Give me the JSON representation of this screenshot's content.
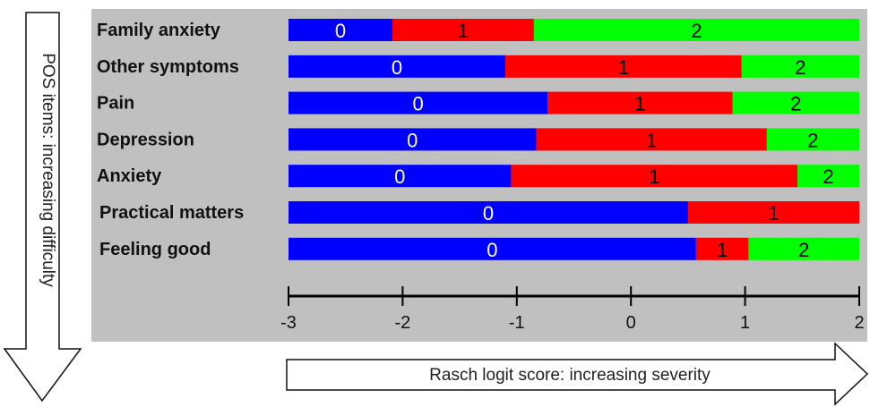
{
  "left_arrow_label": "POS items: increasing difficulty",
  "bottom_arrow_label": "Rasch logit score: increasing severity",
  "colors": {
    "panel": "#c0c0c0",
    "category_0": "#0000ff",
    "category_1": "#ff0000",
    "category_2": "#00ff00"
  },
  "chart_data": {
    "type": "bar",
    "orientation": "horizontal-stacked",
    "xlim": [
      -3,
      2
    ],
    "x_ticks": [
      "-3",
      "-2",
      "-1",
      "0",
      "1",
      "2"
    ],
    "categories": [
      "Family anxiety",
      "Other symptoms",
      "Pain",
      "Depression",
      "Anxiety",
      "Practical matters",
      "Feeling good"
    ],
    "bars": [
      {
        "item": "Family anxiety",
        "segments": [
          {
            "label": "0",
            "category": 0,
            "from": -3,
            "to": -2.09
          },
          {
            "label": "1",
            "category": 1,
            "from": -2.09,
            "to": -0.85
          },
          {
            "label": "2",
            "category": 2,
            "from": -0.85,
            "to": 2
          }
        ]
      },
      {
        "item": "Other symptoms",
        "segments": [
          {
            "label": "0",
            "category": 0,
            "from": -3,
            "to": -1.1
          },
          {
            "label": "1",
            "category": 1,
            "from": -1.1,
            "to": 0.97
          },
          {
            "label": "2",
            "category": 2,
            "from": 0.97,
            "to": 2
          }
        ]
      },
      {
        "item": "Pain",
        "segments": [
          {
            "label": "0",
            "category": 0,
            "from": -3,
            "to": -0.73
          },
          {
            "label": "1",
            "category": 1,
            "from": -0.73,
            "to": 0.89
          },
          {
            "label": "2",
            "category": 2,
            "from": 0.89,
            "to": 2
          }
        ]
      },
      {
        "item": "Depression",
        "segments": [
          {
            "label": "0",
            "category": 0,
            "from": -3,
            "to": -0.83
          },
          {
            "label": "1",
            "category": 1,
            "from": -0.83,
            "to": 1.19
          },
          {
            "label": "2",
            "category": 2,
            "from": 1.19,
            "to": 2
          }
        ]
      },
      {
        "item": "Anxiety",
        "segments": [
          {
            "label": "0",
            "category": 0,
            "from": -3,
            "to": -1.05
          },
          {
            "label": "1",
            "category": 1,
            "from": -1.05,
            "to": 1.46
          },
          {
            "label": "2",
            "category": 2,
            "from": 1.46,
            "to": 2
          }
        ]
      },
      {
        "item": "Practical matters",
        "segments": [
          {
            "label": "0",
            "category": 0,
            "from": -3,
            "to": 0.5
          },
          {
            "label": "1",
            "category": 1,
            "from": 0.5,
            "to": 2
          }
        ]
      },
      {
        "item": "Feeling good",
        "segments": [
          {
            "label": "0",
            "category": 0,
            "from": -3,
            "to": 0.57
          },
          {
            "label": "1",
            "category": 1,
            "from": 0.57,
            "to": 1.03
          },
          {
            "label": "2",
            "category": 2,
            "from": 1.03,
            "to": 2
          }
        ]
      }
    ]
  }
}
